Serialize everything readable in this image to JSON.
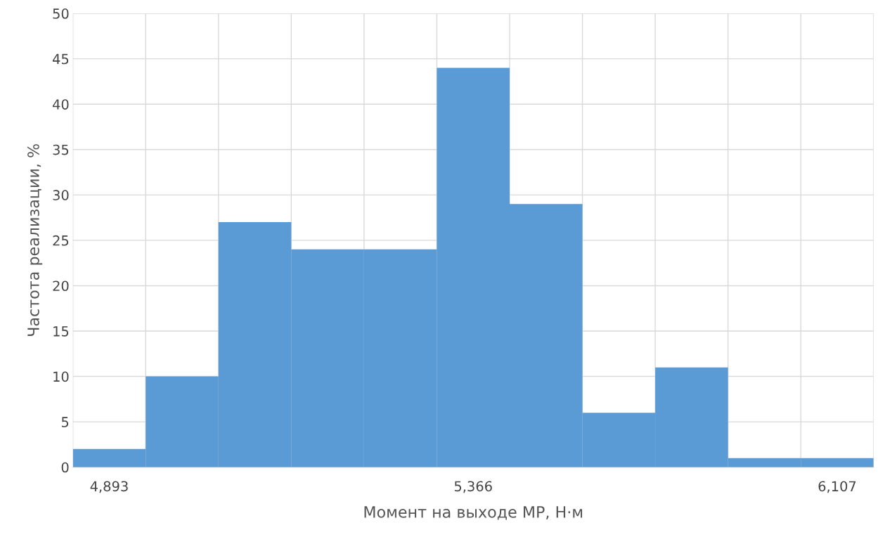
{
  "chart_data": {
    "type": "bar",
    "xlabel": "Момент на выходе МР, Н·м",
    "ylabel": "Частота реализации, %",
    "categories": [
      "4,893",
      null,
      null,
      null,
      null,
      "5,366",
      null,
      null,
      null,
      null,
      "6,107"
    ],
    "values": [
      2,
      10,
      27,
      24,
      24,
      44,
      29,
      6,
      11,
      1,
      1
    ],
    "color": "#5b9bd5",
    "ylim": [
      0,
      50
    ],
    "yticks": [
      0,
      5,
      10,
      15,
      20,
      25,
      30,
      35,
      40,
      45,
      50
    ],
    "grid": true
  }
}
